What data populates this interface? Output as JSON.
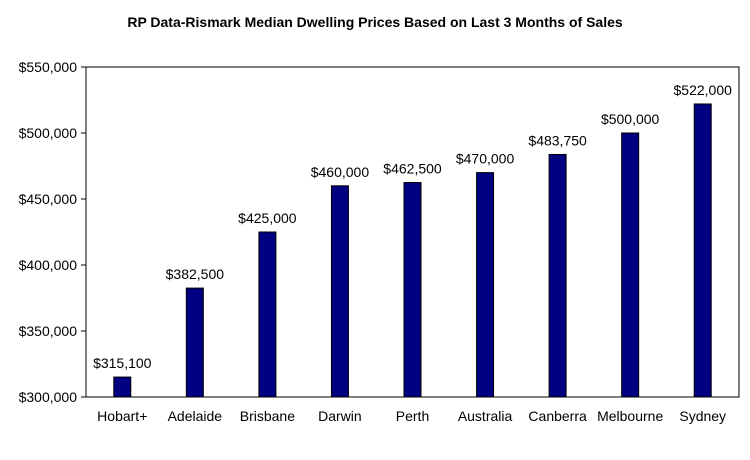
{
  "chart_data": {
    "type": "bar",
    "title": "RP Data-Rismark Median Dwelling Prices Based on Last 3 Months of Sales",
    "xlabel": "",
    "ylabel": "",
    "categories": [
      "Hobart+",
      "Adelaide",
      "Brisbane",
      "Darwin",
      "Perth",
      "Australia",
      "Canberra",
      "Melbourne",
      "Sydney"
    ],
    "values": [
      315100,
      382500,
      425000,
      460000,
      462500,
      470000,
      483750,
      500000,
      522000
    ],
    "data_labels": [
      "$315,100",
      "$382,500",
      "$425,000",
      "$460,000",
      "$462,500",
      "$470,000",
      "$483,750",
      "$500,000",
      "$522,000"
    ],
    "ylim": [
      300000,
      550000
    ],
    "yticks": [
      300000,
      350000,
      400000,
      450000,
      500000,
      550000
    ],
    "ytick_labels": [
      "$300,000",
      "$350,000",
      "$400,000",
      "$450,000",
      "$500,000",
      "$550,000"
    ],
    "grid": false,
    "legend": "none",
    "bar_color": "#000080"
  }
}
